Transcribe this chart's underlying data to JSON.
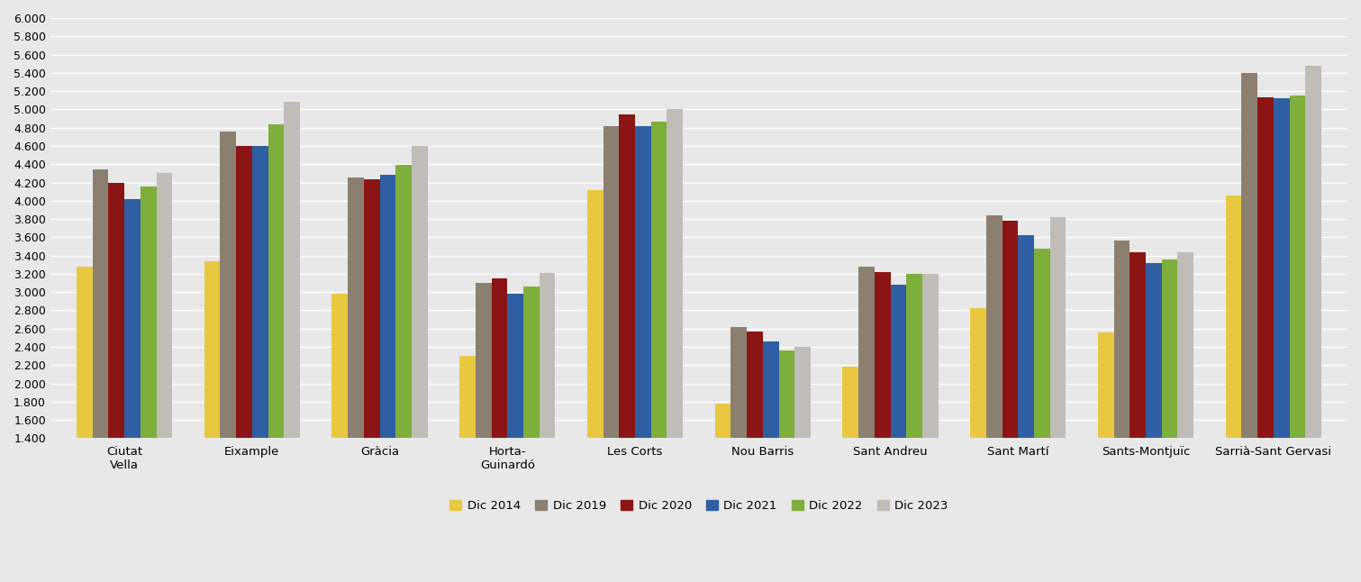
{
  "districts": [
    "Ciutat\nVella",
    "Eixample",
    "Gràcia",
    "Horta-\nGuinardó",
    "Les Corts",
    "Nou Barris",
    "Sant Andreu",
    "Sant Martí",
    "Sants-Montjuïc",
    "Sarrià-Sant Gervasi"
  ],
  "series": {
    "Dic 2014": [
      3280,
      3340,
      2980,
      2300,
      4120,
      1780,
      2180,
      2820,
      2560,
      4060
    ],
    "Dic 2019": [
      4340,
      4760,
      4250,
      3100,
      4820,
      2620,
      3280,
      3840,
      3560,
      5400
    ],
    "Dic 2020": [
      4200,
      4600,
      4230,
      3150,
      4940,
      2570,
      3220,
      3780,
      3440,
      5130
    ],
    "Dic 2021": [
      4020,
      4600,
      4280,
      2980,
      4820,
      2460,
      3080,
      3620,
      3320,
      5120
    ],
    "Dic 2022": [
      4160,
      4840,
      4390,
      3060,
      4870,
      2360,
      3200,
      3480,
      3360,
      5150
    ],
    "Dic 2023": [
      4300,
      5080,
      4600,
      3210,
      5000,
      2400,
      3200,
      3820,
      3440,
      5480
    ]
  },
  "colors": {
    "Dic 2014": "#E8C840",
    "Dic 2019": "#8B8070",
    "Dic 2020": "#8B1515",
    "Dic 2021": "#2E5FA3",
    "Dic 2022": "#7DAF3A",
    "Dic 2023": "#C0BCB8"
  },
  "ylim": [
    1400,
    6000
  ],
  "yticks": [
    1400,
    1600,
    1800,
    2000,
    2200,
    2400,
    2600,
    2800,
    3000,
    3200,
    3400,
    3600,
    3800,
    4000,
    4200,
    4400,
    4600,
    4800,
    5000,
    5200,
    5400,
    5600,
    5800,
    6000
  ],
  "background_color": "#E8E8E8",
  "bar_width": 0.125,
  "figsize": [
    15.11,
    6.46
  ],
  "dpi": 100
}
